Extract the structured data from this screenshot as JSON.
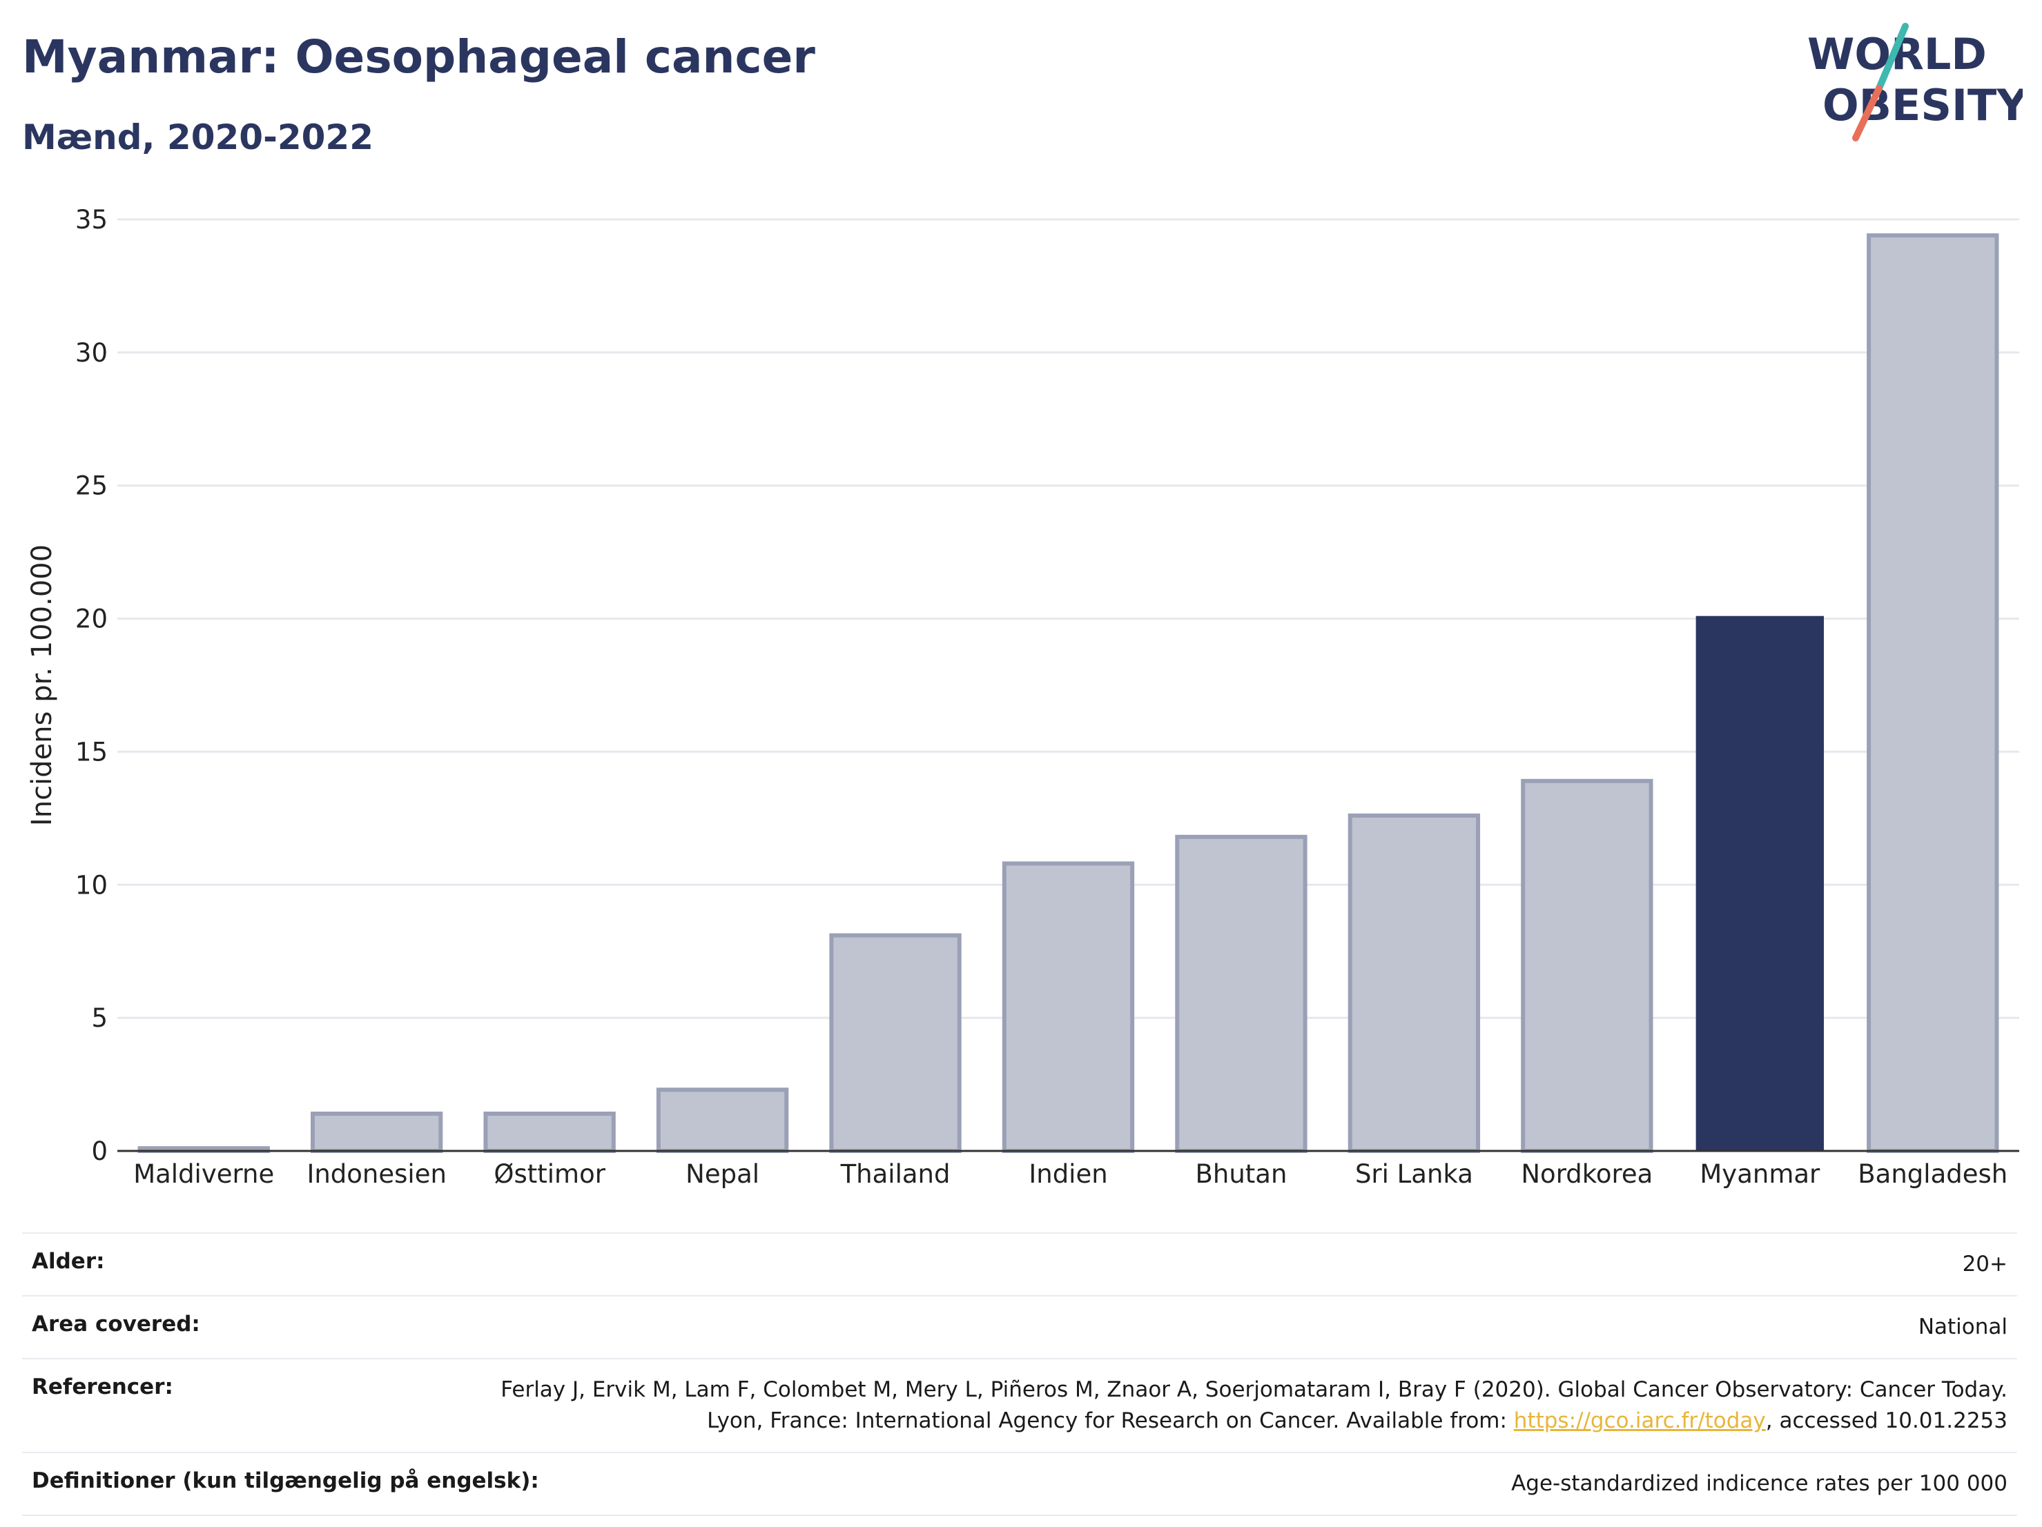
{
  "header": {
    "title": "Myanmar: Oesophageal cancer",
    "subtitle": "Mænd, 2020-2022"
  },
  "logo": {
    "line1": "WORLD",
    "line2": "OBESITY",
    "text_color": "#2b3660",
    "slash_color_top": "#3fb8af",
    "slash_color_bottom": "#e8705a"
  },
  "chart_data": {
    "type": "bar",
    "title": "Myanmar: Oesophageal cancer",
    "subtitle": "Mænd, 2020-2022",
    "ylabel": "Incidens pr. 100.000",
    "xlabel": "",
    "ylim": [
      0,
      35
    ],
    "yticks": [
      0,
      5,
      10,
      15,
      20,
      25,
      30,
      35
    ],
    "grid": true,
    "categories": [
      "Maldiverne",
      "Indonesien",
      "Østtimor",
      "Nepal",
      "Thailand",
      "Indien",
      "Bhutan",
      "Sri Lanka",
      "Nordkorea",
      "Myanmar",
      "Bangladesh"
    ],
    "values": [
      0.1,
      1.4,
      1.4,
      2.3,
      8.1,
      10.8,
      11.8,
      12.6,
      13.9,
      20.1,
      34.4
    ],
    "highlight": "Myanmar",
    "colors": {
      "highlight": "#2b3660",
      "other_fill": "#c0c4d0",
      "other_stroke": "#9aa0b6"
    }
  },
  "meta": {
    "rows": [
      {
        "key": "Alder:",
        "value": "20+"
      },
      {
        "key": "Area covered:",
        "value": "National"
      },
      {
        "key": "Referencer:",
        "value": "Ferlay J, Ervik M, Lam F, Colombet M, Mery L, Piñeros M, Znaor A, Soerjomataram I, Bray F (2020). Global Cancer Observatory: Cancer Today. Lyon, France: International Agency for Research on Cancer. Available from: ",
        "link": "https://gco.iarc.fr/today",
        "suffix": ", accessed 10.01.2253"
      },
      {
        "key": "Definitioner (kun tilgængelig på engelsk):",
        "value": "Age-standardized indicence rates per 100 000"
      }
    ],
    "link_color": "#e8b53a"
  }
}
